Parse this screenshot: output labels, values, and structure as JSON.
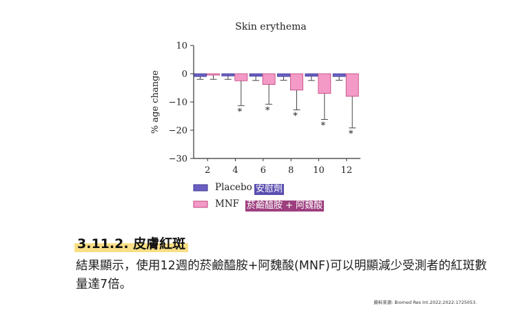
{
  "chart_data": {
    "type": "bar",
    "title": "Skin erythema",
    "ylabel": "% age change",
    "xlabel": "",
    "categories": [
      "2",
      "4",
      "6",
      "8",
      "10",
      "12"
    ],
    "ylim": [
      -30,
      10
    ],
    "yticks": [
      10,
      0,
      -10,
      -20,
      -30
    ],
    "series": [
      {
        "name": "Placebo",
        "color": "#6a5fc1",
        "values": [
          -1.0,
          -0.8,
          -0.9,
          -1.0,
          -0.9,
          -1.0
        ],
        "errors": [
          1.0,
          1.2,
          1.5,
          1.3,
          1.5,
          1.3
        ]
      },
      {
        "name": "MNF",
        "color": "#f39ac7",
        "values": [
          -0.5,
          -2.5,
          -3.8,
          -5.8,
          -7.0,
          -8.0
        ],
        "errors": [
          1.5,
          8.8,
          7.0,
          7.0,
          9.2,
          11.2
        ]
      }
    ],
    "significance": [
      "",
      "*",
      "*",
      "*",
      "*",
      "*"
    ],
    "legend": {
      "position": "bottom-left",
      "entries": [
        {
          "label": "Placebo",
          "translation": "安慰劑"
        },
        {
          "label": "MNF",
          "translation": "菸鹼醯胺 + 阿魏酸"
        }
      ]
    },
    "grid": false
  },
  "section": {
    "heading": "3.11.2. 皮膚紅斑",
    "body": "結果顯示，使用12週的菸鹼醯胺+阿魏酸(MNF)可以明顯減少受測者的紅斑數量達7倍。",
    "source": "資料來源: Biomed Res Int.2022;2022:1725053."
  },
  "colors": {
    "highlight": "#f8df86",
    "placebo_tag_bg": "#5a4eb0",
    "mnf_tag_bg": "#9e3f7f"
  }
}
